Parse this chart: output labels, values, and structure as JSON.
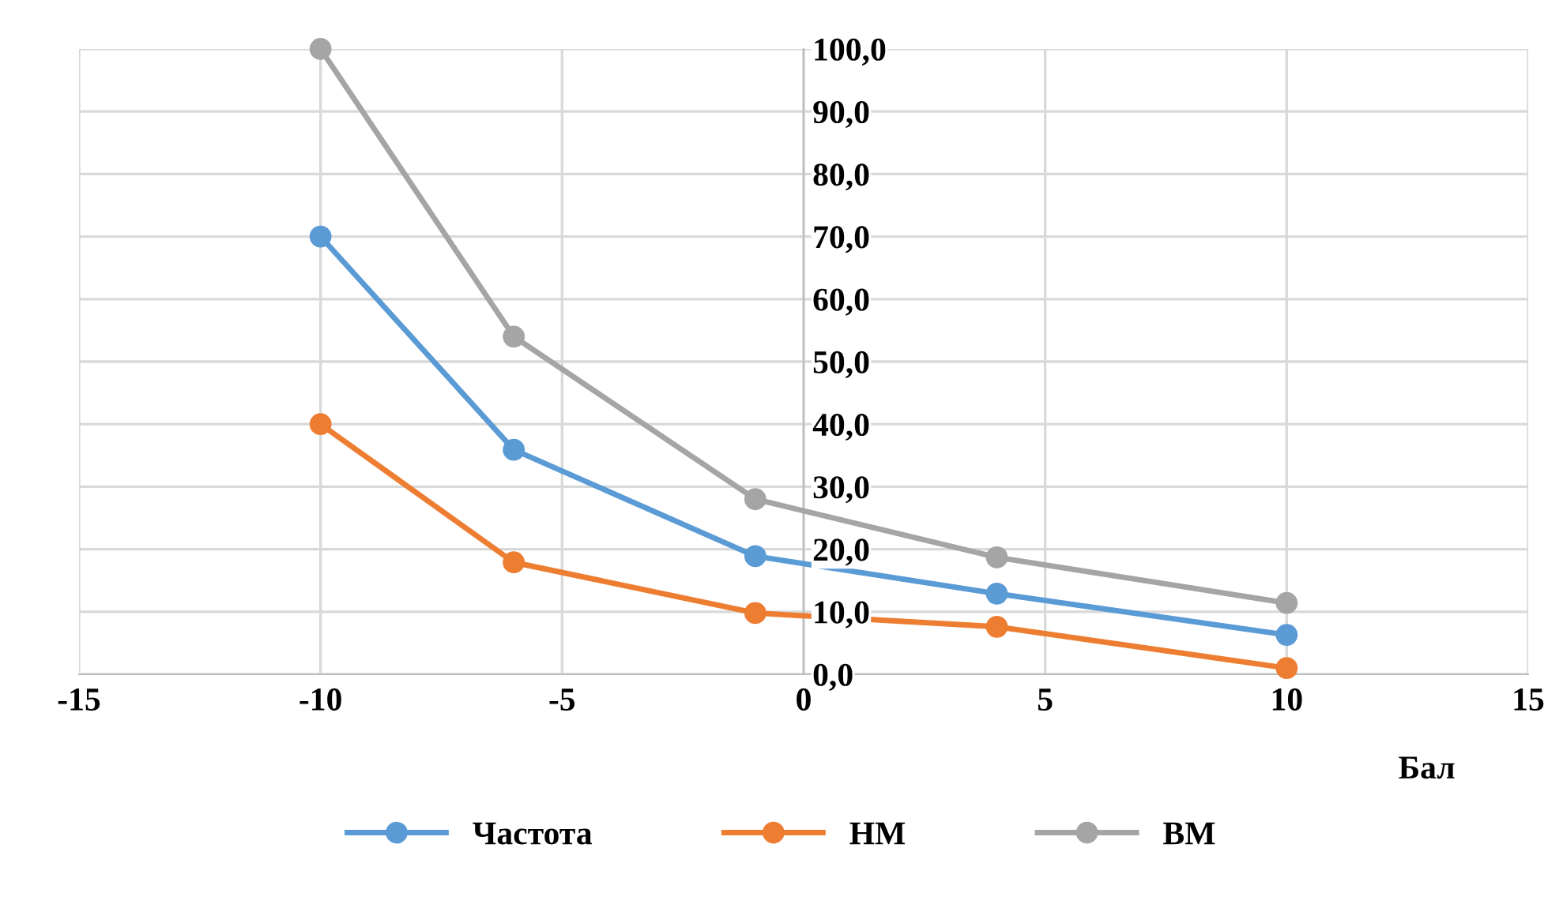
{
  "chart_data": {
    "type": "line",
    "xlabel": "Бал",
    "x": [
      -10,
      -6,
      -1,
      4,
      10
    ],
    "series": [
      {
        "name": "Частота",
        "color": "#5b9bd5",
        "values": [
          70,
          35.9,
          18.9,
          12.9,
          6.3
        ]
      },
      {
        "name": "НМ",
        "color": "#ed7d31",
        "values": [
          40,
          17.9,
          9.8,
          7.6,
          1.0
        ]
      },
      {
        "name": "ВМ",
        "color": "#a5a5a5",
        "values": [
          100,
          54.0,
          28.0,
          18.7,
          11.4
        ]
      }
    ],
    "xlim": [
      -15,
      15
    ],
    "xticks": [
      -15,
      -10,
      -5,
      0,
      5,
      10,
      15
    ],
    "ylim": [
      0,
      100
    ],
    "yticks": [
      {
        "value": 0,
        "label": "0,0"
      },
      {
        "value": 10,
        "label": "10,0"
      },
      {
        "value": 20,
        "label": "20,0"
      },
      {
        "value": 30,
        "label": "30,0"
      },
      {
        "value": 40,
        "label": "40,0"
      },
      {
        "value": 50,
        "label": "50,0"
      },
      {
        "value": 60,
        "label": "60,0"
      },
      {
        "value": 70,
        "label": "70,0"
      },
      {
        "value": 80,
        "label": "80,0"
      },
      {
        "value": 90,
        "label": "90,0"
      },
      {
        "value": 100,
        "label": "100,0"
      }
    ],
    "grid": true,
    "legend": "bottom",
    "marker": "circle",
    "line_style": "solid"
  }
}
